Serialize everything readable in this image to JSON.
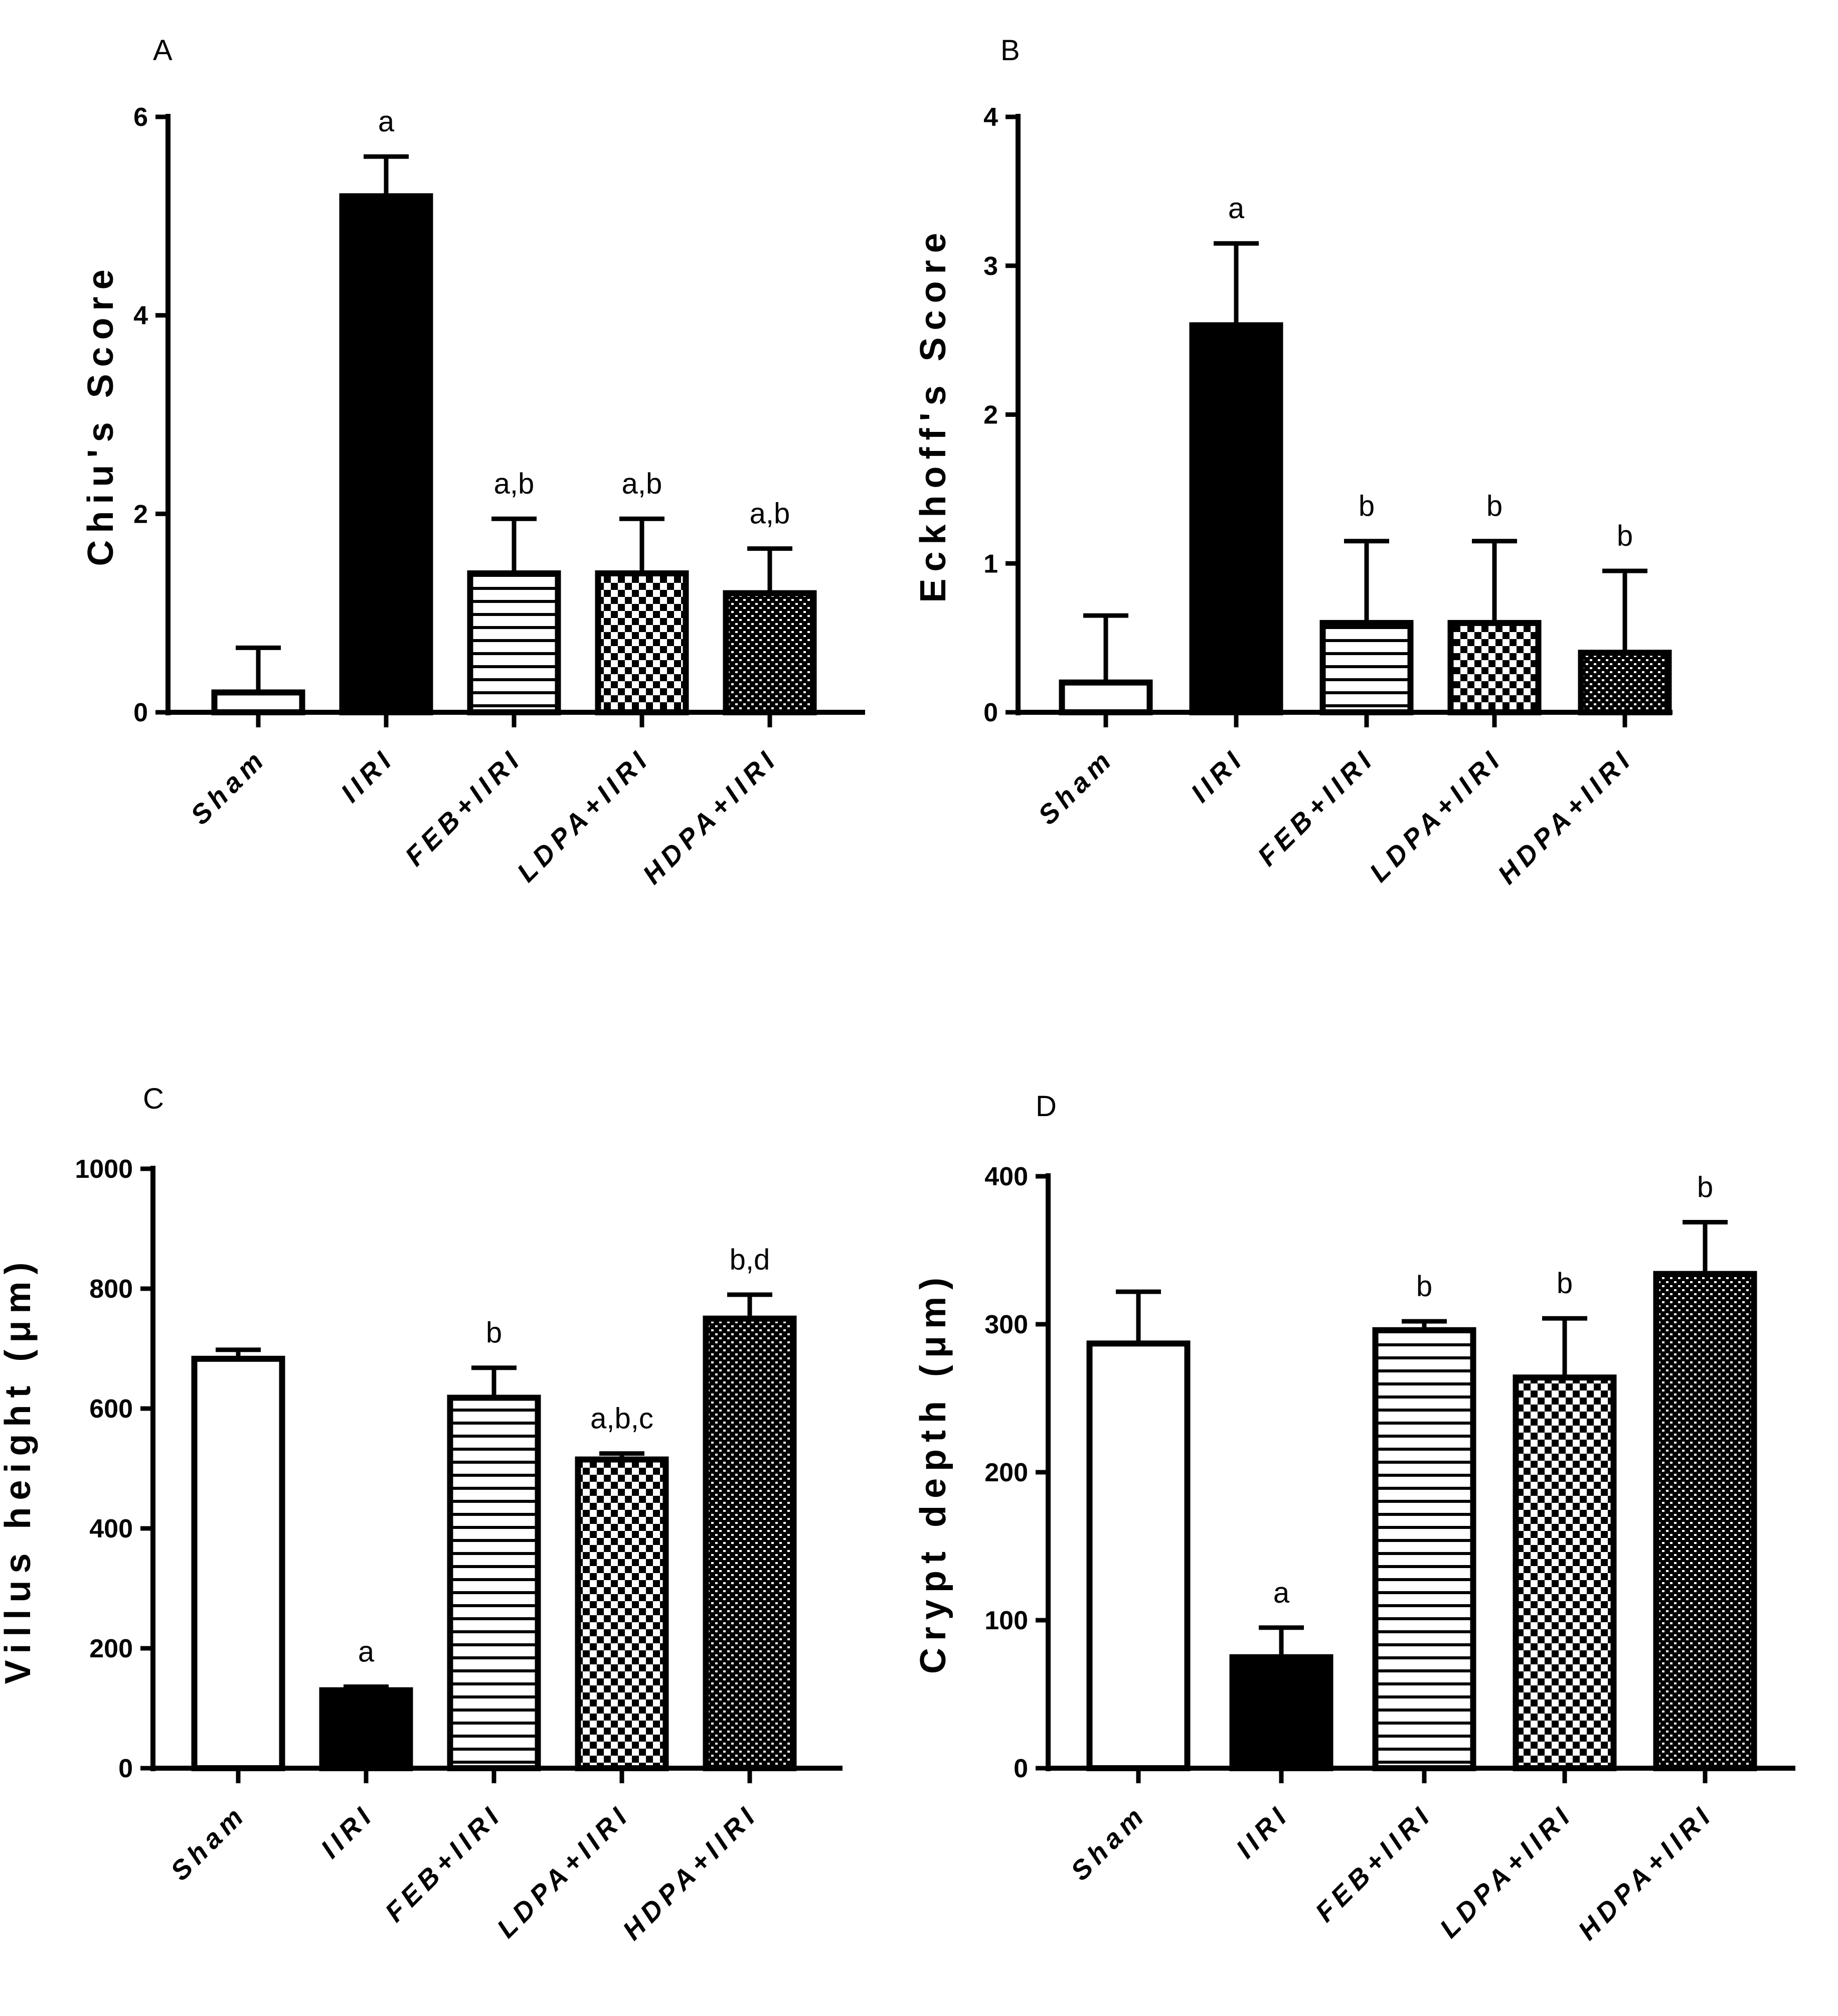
{
  "chart_data": [
    {
      "panel": "A",
      "type": "bar",
      "ylabel": "Chiu's Score",
      "categories": [
        "Sham",
        "IIRI",
        "FEB+IIRI",
        "LDPA+IIRI",
        "HDPA+IIRI"
      ],
      "values": [
        0.2,
        5.2,
        1.4,
        1.4,
        1.2
      ],
      "errors": [
        0.45,
        0.4,
        0.55,
        0.55,
        0.45
      ],
      "significance": [
        "",
        "a",
        "a,b",
        "a,b",
        "a,b"
      ],
      "ylim": [
        0,
        6
      ],
      "yticks": [
        "0",
        "2",
        "4",
        "6"
      ]
    },
    {
      "panel": "B",
      "type": "bar",
      "ylabel": "Eckhoff's Score",
      "categories": [
        "Sham",
        "IIRI",
        "FEB+IIRI",
        "LDPA+IIRI",
        "HDPA+IIRI"
      ],
      "values": [
        0.2,
        2.6,
        0.6,
        0.6,
        0.4
      ],
      "errors": [
        0.45,
        0.55,
        0.55,
        0.55,
        0.55
      ],
      "significance": [
        "",
        "a",
        "b",
        "b",
        "b"
      ],
      "ylim": [
        0,
        4
      ],
      "yticks": [
        "0",
        "1",
        "2",
        "3",
        "4"
      ]
    },
    {
      "panel": "C",
      "type": "bar",
      "ylabel": "Villus height (μm)",
      "categories": [
        "Sham",
        "IIRI",
        "FEB+IIRI",
        "LDPA+IIRI",
        "HDPA+IIRI"
      ],
      "values": [
        683,
        130,
        618,
        515,
        750
      ],
      "errors": [
        15,
        6,
        50,
        10,
        40
      ],
      "significance": [
        "",
        "a",
        "b",
        "a,b,c",
        "b,d"
      ],
      "ylim": [
        0,
        1000
      ],
      "yticks": [
        "0",
        "200",
        "400",
        "600",
        "800",
        "1000"
      ]
    },
    {
      "panel": "D",
      "type": "bar",
      "ylabel": "Crypt depth (μm)",
      "categories": [
        "Sham",
        "IIRI",
        "FEB+IIRI",
        "LDPA+IIRI",
        "HDPA+IIRI"
      ],
      "values": [
        287,
        75,
        296,
        264,
        334
      ],
      "errors": [
        35,
        20,
        6,
        40,
        35
      ],
      "significance": [
        "",
        "a",
        "b",
        "b",
        "b"
      ],
      "ylim": [
        0,
        400
      ],
      "yticks": [
        "0",
        "100",
        "200",
        "300",
        "400"
      ]
    }
  ]
}
